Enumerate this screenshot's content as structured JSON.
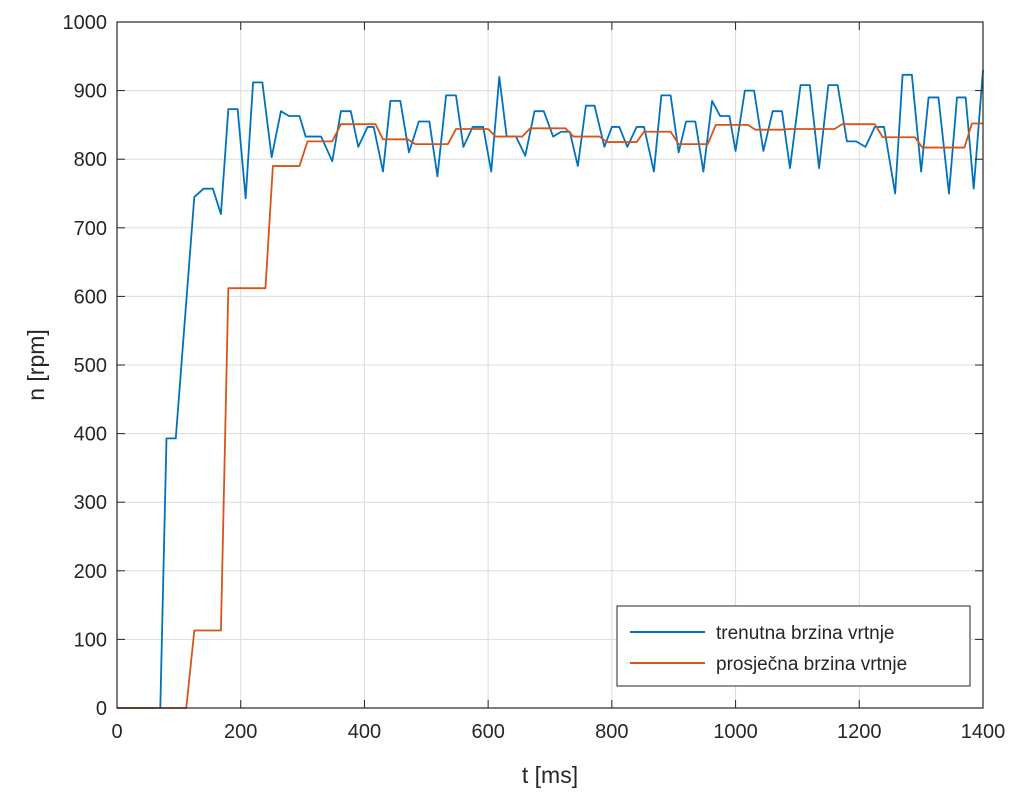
{
  "chart_data": {
    "type": "line",
    "title": "",
    "xlabel": "t [ms]",
    "ylabel": "n [rpm]",
    "xlim": [
      0,
      1400
    ],
    "ylim": [
      0,
      1000
    ],
    "xticks": [
      0,
      200,
      400,
      600,
      800,
      1000,
      1200,
      1400
    ],
    "yticks": [
      0,
      100,
      200,
      300,
      400,
      500,
      600,
      700,
      800,
      900,
      1000
    ],
    "grid": true,
    "legend_position": "bottom-right",
    "series": [
      {
        "name": "trenutna brzina vrtnje",
        "color": "#0072BD",
        "x": [
          0,
          70,
          80,
          95,
          125,
          140,
          155,
          168,
          180,
          195,
          208,
          220,
          235,
          250,
          265,
          278,
          295,
          305,
          330,
          348,
          362,
          378,
          390,
          405,
          415,
          430,
          442,
          458,
          472,
          488,
          505,
          518,
          532,
          548,
          560,
          575,
          592,
          605,
          618,
          630,
          645,
          660,
          675,
          690,
          705,
          718,
          732,
          745,
          758,
          772,
          788,
          800,
          812,
          825,
          840,
          852,
          868,
          880,
          895,
          908,
          920,
          935,
          948,
          962,
          975,
          990,
          1000,
          1015,
          1030,
          1045,
          1060,
          1075,
          1088,
          1105,
          1120,
          1135,
          1150,
          1165,
          1180,
          1195,
          1210,
          1225,
          1240,
          1258,
          1270,
          1285,
          1300,
          1312,
          1328,
          1345,
          1358,
          1372,
          1385,
          1400
        ],
        "y": [
          0,
          0,
          393,
          393,
          745,
          757,
          757,
          720,
          873,
          873,
          743,
          912,
          912,
          803,
          870,
          863,
          863,
          833,
          833,
          797,
          870,
          870,
          818,
          847,
          847,
          782,
          885,
          885,
          810,
          855,
          855,
          775,
          893,
          893,
          818,
          847,
          847,
          782,
          920,
          833,
          833,
          805,
          870,
          870,
          833,
          840,
          840,
          790,
          878,
          878,
          818,
          847,
          847,
          818,
          847,
          847,
          782,
          893,
          893,
          810,
          855,
          855,
          782,
          885,
          863,
          863,
          812,
          900,
          900,
          812,
          870,
          870,
          787,
          908,
          908,
          787,
          908,
          908,
          826,
          826,
          818,
          847,
          847,
          750,
          923,
          923,
          782,
          890,
          890,
          750,
          890,
          890,
          757,
          930
        ]
      },
      {
        "name": "prosječna brzina vrtnje",
        "color": "#D95319",
        "x": [
          0,
          112,
          125,
          168,
          180,
          240,
          252,
          295,
          308,
          348,
          362,
          418,
          430,
          470,
          482,
          535,
          548,
          600,
          612,
          655,
          668,
          725,
          738,
          780,
          792,
          840,
          852,
          895,
          908,
          955,
          968,
          1020,
          1032,
          1075,
          1088,
          1160,
          1172,
          1225,
          1238,
          1290,
          1302,
          1370,
          1382,
          1400
        ],
        "y": [
          0,
          0,
          113,
          113,
          612,
          612,
          790,
          790,
          826,
          826,
          851,
          851,
          829,
          829,
          822,
          822,
          844,
          844,
          833,
          833,
          845,
          845,
          833,
          833,
          825,
          825,
          840,
          840,
          822,
          822,
          850,
          850,
          843,
          843,
          844,
          844,
          851,
          851,
          832,
          832,
          817,
          817,
          852,
          852
        ]
      }
    ]
  }
}
